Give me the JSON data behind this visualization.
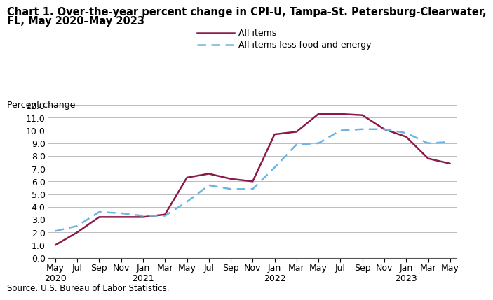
{
  "title_line1": "Chart 1. Over-the-year percent change in CPI-U, Tampa-St. Petersburg-Clearwater,",
  "title_line2": "FL, May 2020–May 2023",
  "ylabel": "Percent change",
  "source": "Source: U.S. Bureau of Labor Statistics.",
  "ylim": [
    0.0,
    12.0
  ],
  "yticks": [
    0.0,
    1.0,
    2.0,
    3.0,
    4.0,
    5.0,
    6.0,
    7.0,
    8.0,
    9.0,
    10.0,
    11.0,
    12.0
  ],
  "x_labels": [
    "May\n2020",
    "Jul",
    "Sep",
    "Nov",
    "Jan\n2021",
    "Mar",
    "May",
    "Jul",
    "Sep",
    "Nov",
    "Jan\n2022",
    "Mar",
    "May",
    "Jul",
    "Sep",
    "Nov",
    "Jan\n2023",
    "Mar",
    "May"
  ],
  "all_items": [
    1.0,
    2.0,
    3.2,
    3.2,
    3.2,
    3.4,
    6.3,
    6.6,
    6.2,
    6.0,
    9.7,
    9.9,
    11.3,
    11.3,
    11.2,
    10.1,
    9.5,
    7.8,
    7.4
  ],
  "all_items_less": [
    2.1,
    2.5,
    3.6,
    3.5,
    3.3,
    3.3,
    4.4,
    5.7,
    5.4,
    5.4,
    7.1,
    8.9,
    9.0,
    10.0,
    10.1,
    10.1,
    9.8,
    9.0,
    9.1
  ],
  "all_items_color": "#8B1A4A",
  "all_items_less_color": "#6CB4E4",
  "background_color": "#ffffff",
  "grid_color": "#bbbbbb",
  "title_fontsize": 10.5,
  "legend_fontsize": 9,
  "tick_fontsize": 9,
  "ylabel_fontsize": 9
}
